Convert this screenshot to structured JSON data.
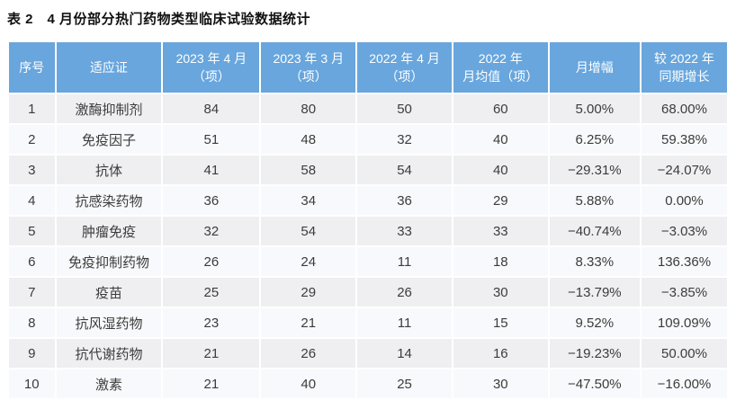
{
  "title": "表 2　4 月份部分热门药物类型临床试验数据统计",
  "colors": {
    "header_background": "#68a6dd",
    "header_text": "#ffffff",
    "row_odd_background": "#efeff1",
    "row_even_background": "#f8f9fc",
    "body_text": "#3c3c3c"
  },
  "table": {
    "columns": [
      "序号",
      "适应证",
      "2023 年 4 月\n（项）",
      "2023 年 3 月\n（项）",
      "2022 年 4 月\n（项）",
      "2022 年\n月均值（项）",
      "月增幅",
      "较 2022 年\n同期增长"
    ],
    "rows": [
      [
        "1",
        "激酶抑制剂",
        "84",
        "80",
        "50",
        "60",
        "5.00%",
        "68.00%"
      ],
      [
        "2",
        "免疫因子",
        "51",
        "48",
        "32",
        "40",
        "6.25%",
        "59.38%"
      ],
      [
        "3",
        "抗体",
        "41",
        "58",
        "54",
        "40",
        "−29.31%",
        "−24.07%"
      ],
      [
        "4",
        "抗感染药物",
        "36",
        "34",
        "36",
        "29",
        "5.88%",
        "0.00%"
      ],
      [
        "5",
        "肿瘤免疫",
        "32",
        "54",
        "33",
        "33",
        "−40.74%",
        "−3.03%"
      ],
      [
        "6",
        "免疫抑制药物",
        "26",
        "24",
        "11",
        "18",
        "8.33%",
        "136.36%"
      ],
      [
        "7",
        "疫苗",
        "25",
        "29",
        "26",
        "30",
        "−13.79%",
        "−3.85%"
      ],
      [
        "8",
        "抗风湿药物",
        "23",
        "21",
        "11",
        "15",
        "9.52%",
        "109.09%"
      ],
      [
        "9",
        "抗代谢药物",
        "21",
        "26",
        "14",
        "16",
        "−19.23%",
        "50.00%"
      ],
      [
        "10",
        "激素",
        "21",
        "40",
        "25",
        "30",
        "−47.50%",
        "−16.00%"
      ]
    ]
  }
}
